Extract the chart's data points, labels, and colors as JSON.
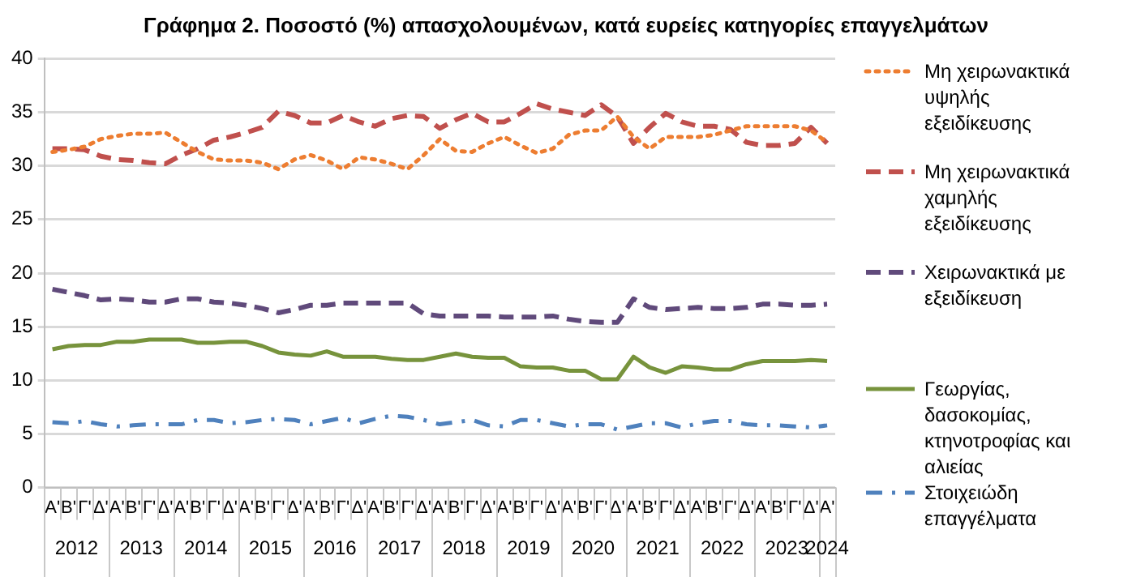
{
  "chart_data": {
    "type": "line",
    "title": "Γράφημα 2. Ποσοστό (%) απασχολουμένων, κατά ευρείες κατηγορίες επαγγελμάτων",
    "categories": [
      "Α'",
      "Β'",
      "Γ'",
      "Δ'",
      "Α'",
      "Β'",
      "Γ'",
      "Δ'",
      "Α'",
      "Β'",
      "Γ'",
      "Δ'",
      "Α'",
      "Β'",
      "Γ'",
      "Δ'",
      "Α'",
      "Β'",
      "Γ'",
      "Δ'",
      "Α'",
      "Β'",
      "Γ'",
      "Δ'",
      "Α'",
      "Β'",
      "Γ'",
      "Δ'",
      "Α'",
      "Β'",
      "Γ'",
      "Δ'",
      "Α'",
      "Β'",
      "Γ'",
      "Δ'",
      "Α'",
      "Β'",
      "Γ'",
      "Δ'",
      "Α'",
      "Β'",
      "Γ'",
      "Δ'",
      "Α'",
      "Β'",
      "Γ'",
      "Δ'",
      "Α'"
    ],
    "annotations": [
      "2012",
      "2013",
      "2014",
      "2015",
      "2016",
      "2017",
      "2018",
      "2019",
      "2020",
      "2021",
      "2022",
      "2023",
      "2024"
    ],
    "series": [
      {
        "name": "Μη χειρωνακτικά υψηλής εξειδίκευσης",
        "color": "#ed7d31",
        "line_style": "dotted",
        "values": [
          31.3,
          31.5,
          31.8,
          32.5,
          32.8,
          33.0,
          33.0,
          33.1,
          32.2,
          31.3,
          30.6,
          30.5,
          30.5,
          30.3,
          29.7,
          30.6,
          31.0,
          30.5,
          29.7,
          30.8,
          30.6,
          30.2,
          29.7,
          31.0,
          32.5,
          31.4,
          31.3,
          32.1,
          32.7,
          31.9,
          31.2,
          31.6,
          32.9,
          33.3,
          33.3,
          34.6,
          32.7,
          31.6,
          32.7,
          32.7,
          32.7,
          32.9,
          33.3,
          33.7,
          33.7,
          33.7,
          33.7,
          33.3,
          32.2
        ]
      },
      {
        "name": "Μη χειρωνακτικά χαμηλής εξειδίκευσης",
        "color": "#c0504d",
        "line_style": "dashed",
        "values": [
          31.6,
          31.6,
          31.5,
          30.9,
          30.6,
          30.5,
          30.3,
          30.2,
          31.0,
          31.6,
          32.4,
          32.7,
          33.1,
          33.6,
          35.1,
          34.7,
          34.0,
          34.0,
          34.7,
          34.1,
          33.7,
          34.4,
          34.7,
          34.6,
          33.5,
          34.3,
          34.9,
          34.1,
          34.1,
          34.9,
          35.8,
          35.3,
          35.0,
          34.7,
          35.7,
          34.6,
          32.1,
          33.6,
          34.9,
          34.1,
          33.7,
          33.7,
          33.4,
          32.2,
          31.9,
          31.9,
          32.1,
          33.6,
          32.1
        ]
      },
      {
        "name": "Χειρωνακτικά με εξειδίκευση",
        "color": "#604a7b",
        "line_style": "dashed",
        "values": [
          18.5,
          18.2,
          17.9,
          17.5,
          17.6,
          17.5,
          17.3,
          17.3,
          17.6,
          17.6,
          17.3,
          17.2,
          17.0,
          16.7,
          16.3,
          16.6,
          17.0,
          17.0,
          17.2,
          17.2,
          17.2,
          17.2,
          17.2,
          16.2,
          16.0,
          16.0,
          16.0,
          16.0,
          15.9,
          15.9,
          15.9,
          16.0,
          15.7,
          15.5,
          15.4,
          15.4,
          17.6,
          16.8,
          16.6,
          16.7,
          16.8,
          16.7,
          16.7,
          16.8,
          17.1,
          17.1,
          17.0,
          17.0,
          17.1
        ]
      },
      {
        "name": "Γεωργίας, δασοκομίας, κτηνοτροφίας και αλιείας",
        "color": "#77933c",
        "line_style": "solid",
        "values": [
          12.9,
          13.2,
          13.3,
          13.3,
          13.6,
          13.6,
          13.8,
          13.8,
          13.8,
          13.5,
          13.5,
          13.6,
          13.6,
          13.2,
          12.6,
          12.4,
          12.3,
          12.7,
          12.2,
          12.2,
          12.2,
          12.0,
          11.9,
          11.9,
          12.2,
          12.5,
          12.2,
          12.1,
          12.1,
          11.3,
          11.2,
          11.2,
          10.9,
          10.9,
          10.1,
          10.1,
          12.2,
          11.2,
          10.7,
          11.3,
          11.2,
          11.0,
          11.0,
          11.5,
          11.8,
          11.8,
          11.8,
          11.9,
          11.8
        ]
      },
      {
        "name": "Στοιχειώδη επαγγέλματα",
        "color": "#4f81bd",
        "line_style": "dashdot",
        "values": [
          6.1,
          6.0,
          6.2,
          5.9,
          5.7,
          5.8,
          5.9,
          5.9,
          5.9,
          6.3,
          6.3,
          6.0,
          6.1,
          6.3,
          6.4,
          6.3,
          5.9,
          6.2,
          6.5,
          6.0,
          6.4,
          6.7,
          6.6,
          6.3,
          5.9,
          6.1,
          6.3,
          5.8,
          5.7,
          6.3,
          6.3,
          6.0,
          5.7,
          5.9,
          5.9,
          5.4,
          5.7,
          6.0,
          6.0,
          5.6,
          6.0,
          6.2,
          6.2,
          5.9,
          5.8,
          5.8,
          5.7,
          5.6,
          5.8
        ]
      }
    ],
    "ylim": [
      0,
      40
    ],
    "yticks": [
      0,
      5,
      10,
      15,
      20,
      25,
      30,
      35,
      40
    ],
    "grid": "y",
    "legend": "right",
    "marker": "none"
  }
}
